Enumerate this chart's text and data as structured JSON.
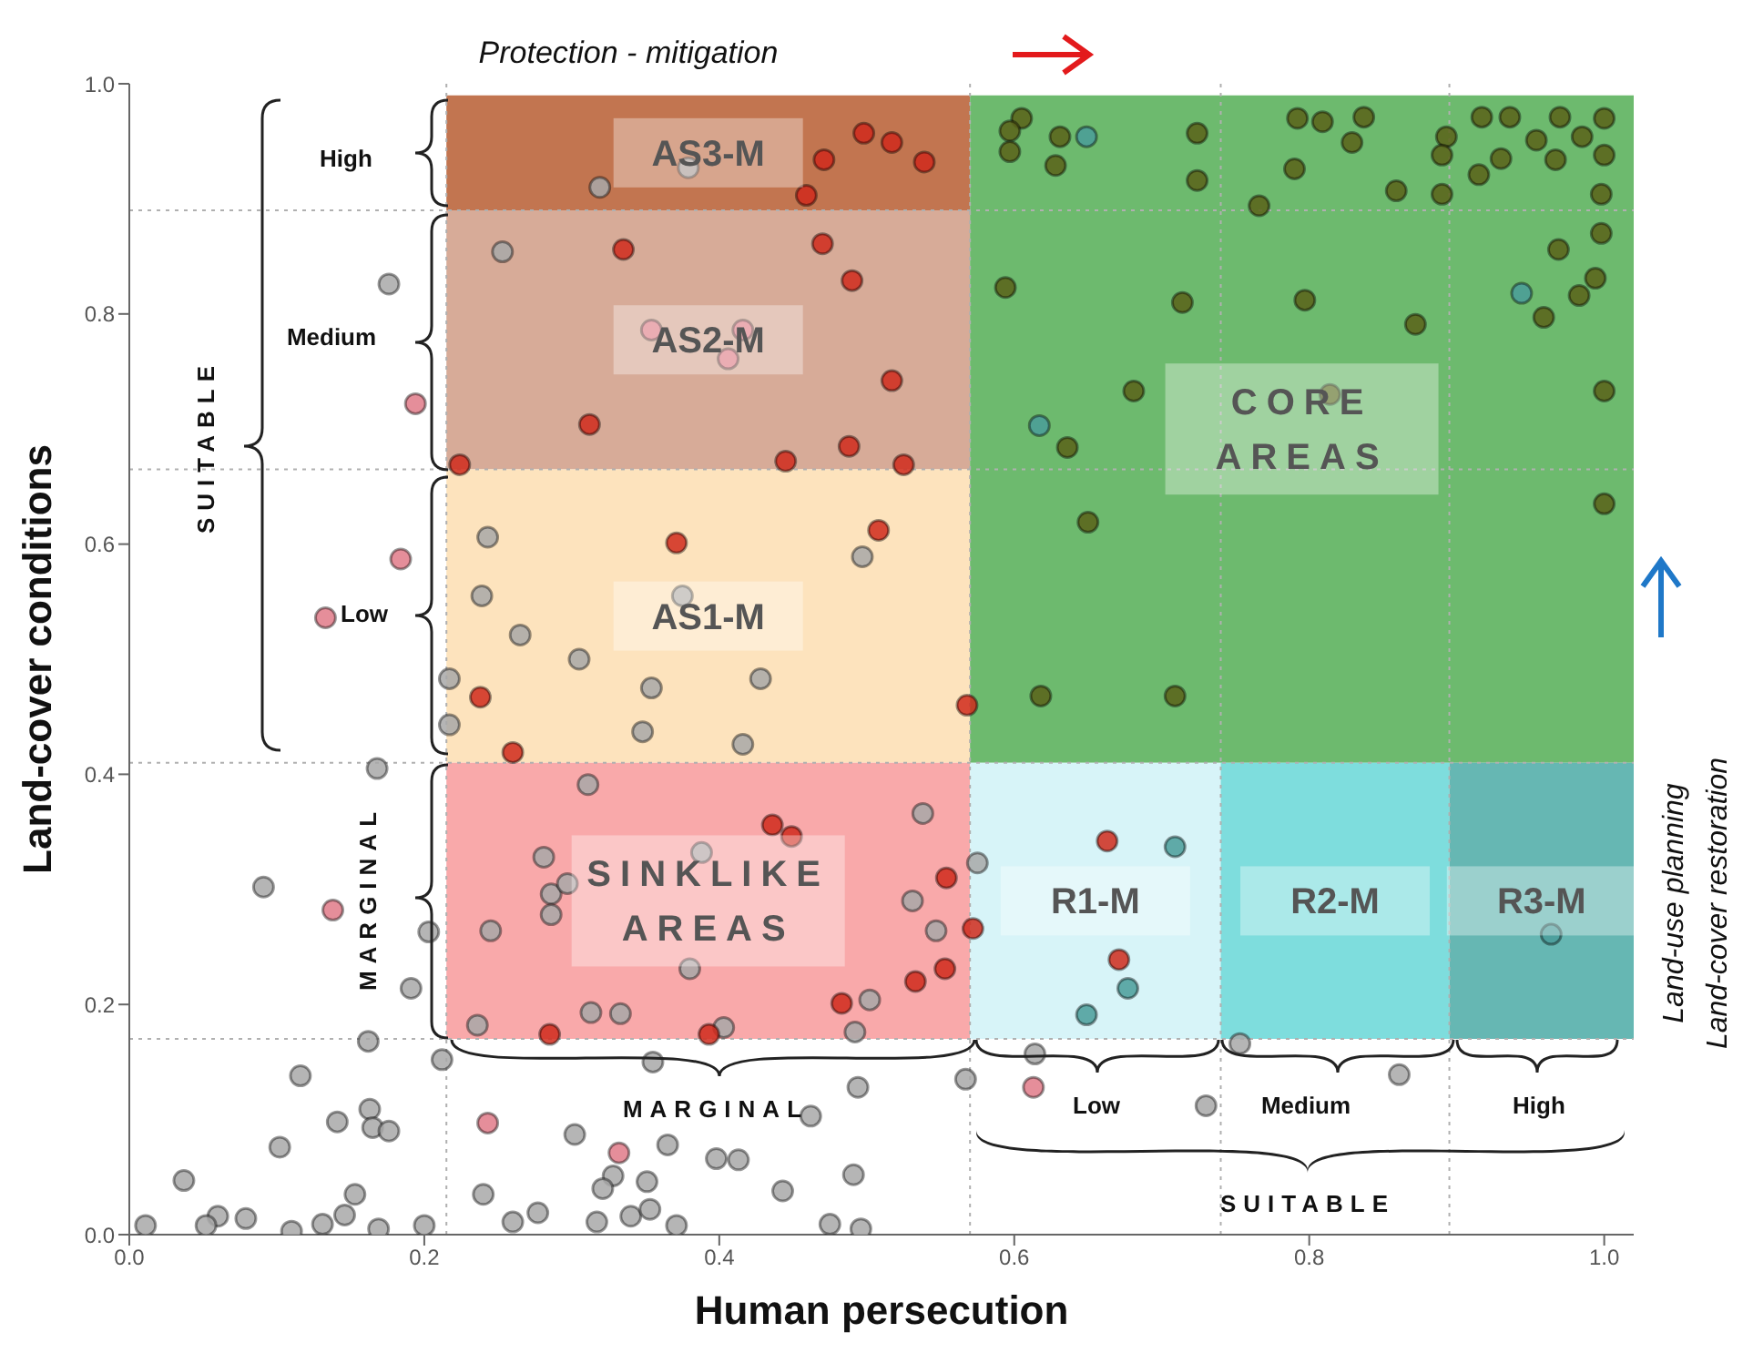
{
  "chart_data": {
    "type": "scatter",
    "xlabel": "Human persecution",
    "ylabel": "Land-cover conditions",
    "xlim": [
      0,
      1.02
    ],
    "ylim": [
      0,
      1.0
    ],
    "xticks": [
      {
        "value": 0,
        "label": "0.0"
      },
      {
        "value": 0.2,
        "label": "0.2"
      },
      {
        "value": 0.4,
        "label": "0.4"
      },
      {
        "value": 0.6,
        "label": "0.6"
      },
      {
        "value": 0.8,
        "label": "0.8"
      },
      {
        "value": 1,
        "label": "1.0"
      }
    ],
    "yticks": [
      {
        "value": 0,
        "label": "0.0"
      },
      {
        "value": 0.2,
        "label": "0.2"
      },
      {
        "value": 0.4,
        "label": "0.4"
      },
      {
        "value": 0.6,
        "label": "0.6"
      },
      {
        "value": 0.8,
        "label": "0.8"
      },
      {
        "value": 1,
        "label": "1.0"
      }
    ],
    "marker": "circle",
    "bands": [
      {
        "axis": "y",
        "from": 0.89,
        "to": 0.99,
        "label": "AS3-M",
        "color": "#c27550"
      },
      {
        "axis": "y",
        "from": 0.665,
        "to": 0.89,
        "label": "AS2-M",
        "color": "#d7ab98"
      },
      {
        "axis": "y",
        "from": 0.41,
        "to": 0.665,
        "label": "AS1-M",
        "color": "#fde3bd"
      },
      {
        "axis": "y",
        "from": 0.17,
        "to": 0.41,
        "label": "SINKLIKE AREAS",
        "color": "#f9a9aa"
      },
      {
        "axis": "y",
        "from": 0.41,
        "to": 0.99,
        "label": "CORE AREAS",
        "color": "#6dba6e"
      },
      {
        "axis": "y",
        "from": 0.17,
        "to": 0.41,
        "label": "R1-M",
        "color": "#d7f4f8"
      },
      {
        "axis": "y",
        "from": 0.17,
        "to": 0.41,
        "label": "R2-M",
        "color": "#7edddd"
      },
      {
        "axis": "y",
        "from": 0.17,
        "to": 0.41,
        "label": "R3-M",
        "color": "#66b7b3"
      }
    ],
    "ref_lines": [
      {
        "axis": "y",
        "value": 0.89,
        "color": "#b0b0b0",
        "line_style": "dotted"
      },
      {
        "axis": "y",
        "value": 0.665,
        "color": "#b0b0b0",
        "line_style": "dotted"
      },
      {
        "axis": "y",
        "value": 0.41,
        "color": "#b0b0b0",
        "line_style": "dotted"
      },
      {
        "axis": "y",
        "value": 0.17,
        "color": "#b0b0b0",
        "line_style": "dotted"
      },
      {
        "axis": "x",
        "value": 0.215,
        "color": "#b0b0b0",
        "line_style": "dotted"
      },
      {
        "axis": "x",
        "value": 0.57,
        "color": "#b0b0b0",
        "line_style": "dotted"
      },
      {
        "axis": "x",
        "value": 0.74,
        "color": "#b0b0b0",
        "line_style": "dotted"
      },
      {
        "axis": "x",
        "value": 0.895,
        "color": "#b0b0b0",
        "line_style": "dotted"
      }
    ],
    "annotations": [
      "Protection - mitigation",
      "Land-use planning",
      "Land-cover restoration",
      "High",
      "Medium",
      "Low",
      "SUITABLE",
      "MARGINAL",
      "MARGINAL",
      "Low",
      "Medium",
      "High",
      "SUITABLE"
    ],
    "series": [
      {
        "color": "#a8a8a8",
        "x": [
          0.319,
          0.379,
          0.253,
          0.176,
          0.243,
          0.497,
          0.239,
          0.375,
          0.265,
          0.305,
          0.428,
          0.354,
          0.348,
          0.416,
          0.217,
          0.217,
          0.311,
          0.281,
          0.286,
          0.297,
          0.286,
          0.245,
          0.388,
          0.38,
          0.538,
          0.531,
          0.547,
          0.502,
          0.492,
          0.236,
          0.313,
          0.333,
          0.403,
          0.091,
          0.168,
          0.203,
          0.191,
          0.162,
          0.212,
          0.116,
          0.163,
          0.141,
          0.165,
          0.176,
          0.102,
          0.037,
          0.153,
          0.06,
          0.079,
          0.052,
          0.11,
          0.131,
          0.146,
          0.169,
          0.2,
          0.011,
          0.355,
          0.302,
          0.365,
          0.398,
          0.413,
          0.328,
          0.351,
          0.321,
          0.24,
          0.443,
          0.491,
          0.494,
          0.462,
          0.567,
          0.277,
          0.26,
          0.317,
          0.34,
          0.353,
          0.371,
          0.475,
          0.496,
          0.575,
          0.614,
          0.73,
          0.861,
          0.753
        ],
        "values": [
          0.91,
          0.927,
          0.854,
          0.826,
          0.606,
          0.589,
          0.555,
          0.555,
          0.521,
          0.5,
          0.483,
          0.475,
          0.437,
          0.426,
          0.483,
          0.443,
          0.391,
          0.328,
          0.296,
          0.305,
          0.278,
          0.264,
          0.332,
          0.231,
          0.366,
          0.29,
          0.264,
          0.204,
          0.176,
          0.182,
          0.193,
          0.192,
          0.18,
          0.302,
          0.405,
          0.263,
          0.214,
          0.168,
          0.152,
          0.138,
          0.109,
          0.098,
          0.093,
          0.09,
          0.076,
          0.047,
          0.035,
          0.016,
          0.014,
          0.008,
          0.003,
          0.009,
          0.017,
          0.005,
          0.008,
          0.008,
          0.15,
          0.087,
          0.078,
          0.066,
          0.065,
          0.051,
          0.046,
          0.04,
          0.035,
          0.038,
          0.052,
          0.128,
          0.103,
          0.135,
          0.019,
          0.011,
          0.011,
          0.016,
          0.022,
          0.008,
          0.009,
          0.005,
          0.323,
          0.157,
          0.112,
          0.139,
          0.166
        ]
      },
      {
        "color": "#4a9c9a",
        "x": [
          0.649,
          0.617,
          0.944,
          0.709,
          0.677,
          0.649,
          0.964
        ],
        "values": [
          0.954,
          0.703,
          0.818,
          0.337,
          0.214,
          0.191,
          0.261
        ]
      },
      {
        "color": "#e07a88",
        "x": [
          0.354,
          0.416,
          0.406,
          0.194,
          0.184,
          0.133,
          0.138,
          0.243,
          0.332,
          0.613
        ],
        "values": [
          0.786,
          0.786,
          0.761,
          0.722,
          0.587,
          0.536,
          0.282,
          0.097,
          0.071,
          0.128
        ]
      },
      {
        "color": "#d02a1c",
        "x": [
          0.498,
          0.517,
          0.539,
          0.471,
          0.459,
          0.335,
          0.47,
          0.49,
          0.517,
          0.312,
          0.488,
          0.445,
          0.525,
          0.224,
          0.371,
          0.508,
          0.238,
          0.568,
          0.26,
          0.436,
          0.449,
          0.554,
          0.572,
          0.553,
          0.533,
          0.483,
          0.285,
          0.393,
          0.663,
          0.671
        ],
        "values": [
          0.957,
          0.949,
          0.932,
          0.934,
          0.903,
          0.856,
          0.861,
          0.829,
          0.742,
          0.704,
          0.685,
          0.672,
          0.669,
          0.669,
          0.601,
          0.612,
          0.467,
          0.46,
          0.419,
          0.356,
          0.346,
          0.31,
          0.266,
          0.231,
          0.22,
          0.201,
          0.174,
          0.174,
          0.342,
          0.239
        ]
      },
      {
        "color": "#5b6119",
        "x": [
          0.605,
          0.597,
          0.597,
          0.631,
          0.628,
          0.724,
          0.724,
          0.792,
          0.809,
          0.837,
          0.829,
          0.79,
          0.766,
          0.859,
          0.89,
          0.893,
          0.89,
          0.917,
          0.936,
          0.915,
          0.93,
          0.954,
          0.967,
          0.97,
          0.985,
          1.0,
          1.0,
          0.998,
          0.998,
          0.969,
          0.994,
          0.983,
          0.959,
          0.594,
          0.714,
          0.797,
          0.872,
          0.681,
          0.814,
          1.0,
          0.636,
          0.65,
          1.0,
          0.618,
          0.709
        ],
        "values": [
          0.97,
          0.959,
          0.941,
          0.954,
          0.929,
          0.957,
          0.916,
          0.97,
          0.967,
          0.971,
          0.949,
          0.926,
          0.894,
          0.907,
          0.904,
          0.954,
          0.938,
          0.971,
          0.971,
          0.921,
          0.935,
          0.951,
          0.934,
          0.971,
          0.954,
          0.97,
          0.938,
          0.904,
          0.87,
          0.856,
          0.831,
          0.816,
          0.797,
          0.823,
          0.81,
          0.812,
          0.791,
          0.733,
          0.73,
          0.733,
          0.684,
          0.619,
          0.635,
          0.468,
          0.468
        ]
      }
    ]
  }
}
